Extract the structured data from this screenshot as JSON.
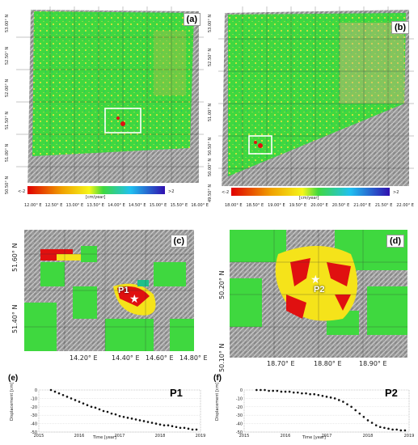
{
  "panel_a": {
    "label": "(a)",
    "lat_ticks": [
      "53.00° N",
      "52.50° N",
      "52.00° N",
      "51.50° N",
      "51.00° N",
      "50.50° N"
    ],
    "lon_ticks": [
      "12.00° E",
      "12.50° E",
      "13.00° E",
      "13.50° E",
      "14.00° E",
      "14.50° E",
      "15.00° E",
      "15.50° E",
      "16.00° E"
    ],
    "cb_left": "<-2",
    "cb_right": ">2",
    "cb_unit": "[cm/year]"
  },
  "panel_b": {
    "label": "(b)",
    "lat_ticks": [
      "53.00° N",
      "52.50° N",
      "51.00° N",
      "50.50° N",
      "50.00° N",
      "49.50° N"
    ],
    "lon_ticks": [
      "18.00° E",
      "18.50° E",
      "19.00° E",
      "19.50° E",
      "20.00° E",
      "20.50° E",
      "21.00° E",
      "21.50° E",
      "22.00° E"
    ],
    "cb_left": "<-2",
    "cb_right": ">2",
    "cb_unit": "[cm/year]"
  },
  "panel_c": {
    "label": "(c)",
    "point": "P1",
    "lat_ticks": [
      "51.60° N",
      "51.40° N"
    ],
    "lon_ticks": [
      "14.20° E",
      "14.40° E",
      "14.60° E",
      "14.80° E"
    ]
  },
  "panel_d": {
    "label": "(d)",
    "point": "P2",
    "lat_ticks": [
      "50.20° N",
      "50.10° N"
    ],
    "lon_ticks": [
      "18.70° E",
      "18.80° E",
      "18.90° E"
    ]
  },
  "chart_data": [
    {
      "type": "scatter",
      "panel": "(e)",
      "title": "P1",
      "xlabel": "Time [year]",
      "ylabel": "Displacement [cm]",
      "xlim": [
        2015,
        2019
      ],
      "ylim": [
        -50,
        0
      ],
      "xticks": [
        "2015",
        "2016",
        "2017",
        "2018",
        "2019"
      ],
      "yticks": [
        "0",
        "-10",
        "-20",
        "-30",
        "-40",
        "-50"
      ],
      "x": [
        2015.3,
        2015.4,
        2015.5,
        2015.6,
        2015.7,
        2015.8,
        2015.9,
        2016.0,
        2016.1,
        2016.2,
        2016.3,
        2016.4,
        2016.5,
        2016.6,
        2016.7,
        2016.8,
        2016.9,
        2017.0,
        2017.1,
        2017.2,
        2017.3,
        2017.4,
        2017.5,
        2017.6,
        2017.7,
        2017.8,
        2017.9,
        2018.0,
        2018.1,
        2018.2,
        2018.3,
        2018.4,
        2018.5,
        2018.6,
        2018.7,
        2018.8,
        2018.9
      ],
      "y": [
        0,
        -2,
        -4,
        -6,
        -8,
        -10,
        -12,
        -14,
        -16,
        -18,
        -20,
        -21,
        -23,
        -25,
        -26,
        -28,
        -29,
        -31,
        -32,
        -33,
        -34,
        -35,
        -36,
        -37,
        -38,
        -39,
        -40,
        -41,
        -42,
        -42,
        -43,
        -44,
        -45,
        -45,
        -46,
        -47,
        -47
      ]
    },
    {
      "type": "scatter",
      "panel": "(f)",
      "title": "P2",
      "xlabel": "Time [year]",
      "ylabel": "Displacement [cm]",
      "xlim": [
        2015,
        2019
      ],
      "ylim": [
        -50,
        0
      ],
      "xticks": [
        "2015",
        "2016",
        "2017",
        "2018",
        "2019"
      ],
      "yticks": [
        "0",
        "-10",
        "-20",
        "-30",
        "-40",
        "-50"
      ],
      "x": [
        2015.3,
        2015.4,
        2015.5,
        2015.6,
        2015.7,
        2015.8,
        2015.9,
        2016.0,
        2016.1,
        2016.2,
        2016.3,
        2016.4,
        2016.5,
        2016.6,
        2016.7,
        2016.8,
        2016.9,
        2017.0,
        2017.1,
        2017.2,
        2017.3,
        2017.4,
        2017.5,
        2017.6,
        2017.7,
        2017.8,
        2017.9,
        2018.0,
        2018.1,
        2018.2,
        2018.3,
        2018.4,
        2018.5,
        2018.6,
        2018.7,
        2018.8,
        2018.9
      ],
      "y": [
        0,
        0,
        0,
        -1,
        -1,
        -1,
        -2,
        -2,
        -2,
        -3,
        -3,
        -4,
        -4,
        -5,
        -5,
        -6,
        -7,
        -8,
        -9,
        -10,
        -12,
        -14,
        -17,
        -20,
        -24,
        -28,
        -32,
        -36,
        -39,
        -42,
        -44,
        -45,
        -46,
        -47,
        -47,
        -48,
        -48
      ]
    }
  ],
  "colors": {
    "green": "#39d93a",
    "grey": "#8a8a8a",
    "red": "#e01010",
    "yellow": "#f5e31a"
  }
}
